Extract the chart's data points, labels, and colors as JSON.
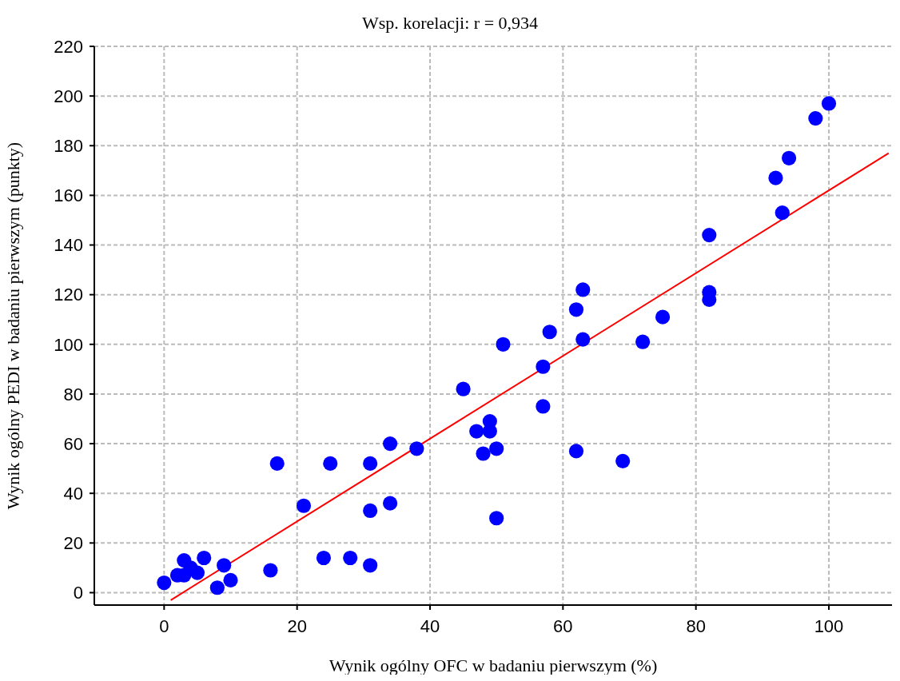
{
  "chart_data": {
    "type": "scatter",
    "title": "Wsp. korelacji: r = 0,934",
    "xlabel": "Wynik ogólny OFC w badaniu pierwszym (%)",
    "ylabel": "Wynik ogólny PEDI w   badaniu pierwszym (punkty)",
    "xlim": [
      -10.5,
      109.5
    ],
    "xticks": [
      0,
      20,
      40,
      60,
      80,
      100
    ],
    "ylim": [
      -5,
      220
    ],
    "yticks": [
      0,
      20,
      40,
      60,
      80,
      100,
      120,
      140,
      160,
      180,
      200,
      220
    ],
    "grid": true,
    "marker": "circle",
    "series": [
      {
        "color": "#0000ff",
        "x": [
          0,
          2,
          3,
          3,
          4,
          5,
          6,
          8,
          9,
          10,
          16,
          17,
          21,
          24,
          25,
          28,
          31,
          31,
          31,
          34,
          34,
          38,
          45,
          47,
          48,
          49,
          49,
          50,
          50,
          51,
          57,
          57,
          58,
          62,
          62,
          63,
          63,
          69,
          72,
          75,
          82,
          82,
          82,
          92,
          93,
          94,
          98,
          100
        ],
        "values": [
          4,
          7,
          13,
          7,
          10,
          8,
          14,
          2,
          11,
          5,
          9,
          52,
          35,
          14,
          52,
          14,
          52,
          33,
          11,
          60,
          36,
          58,
          82,
          65,
          56,
          69,
          65,
          58,
          30,
          100,
          91,
          75,
          105,
          114,
          57,
          122,
          102,
          53,
          101,
          111,
          144,
          121,
          118,
          167,
          153,
          175,
          191,
          197
        ]
      },
      {
        "type": "line",
        "color": "#ff0000",
        "line_style": "solid",
        "marker": "none",
        "x": [
          1,
          109
        ],
        "values": [
          -3,
          177
        ]
      }
    ]
  }
}
